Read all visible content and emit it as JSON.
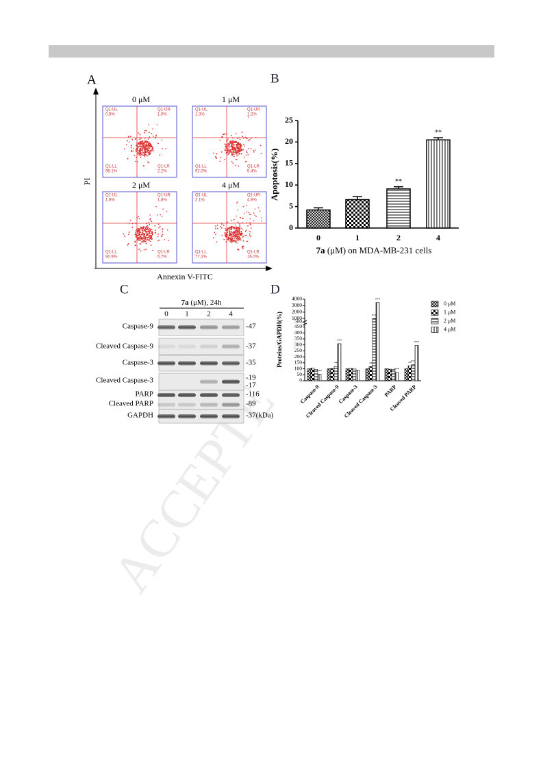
{
  "header_bar": true,
  "panel_labels": [
    "A",
    "B",
    "C",
    "D"
  ],
  "flow": {
    "y_label": "PI",
    "x_label": "Annexin V-FITC",
    "plots": [
      {
        "title": "0 μM",
        "quadrants": [
          "Q1-UL",
          "Q1-UR",
          "Q1-LL",
          "Q1-LR"
        ],
        "percents": [
          "0.8%",
          "1.0%",
          "96.1%",
          "2.2%"
        ]
      },
      {
        "title": "1 μM",
        "quadrants": [
          "Q1-UL",
          "Q1-UR",
          "Q1-LL",
          "Q1-LR"
        ],
        "percents": [
          "1.3%",
          "1.2%",
          "92.0%",
          "5.4%"
        ]
      },
      {
        "title": "2 μM",
        "quadrants": [
          "Q1-UL",
          "Q1-UR",
          "Q1-LL",
          "Q1-LR"
        ],
        "percents": [
          "1.6%",
          "1.8%",
          "90.9%",
          "5.7%"
        ]
      },
      {
        "title": "4 μM",
        "quadrants": [
          "Q1-UL",
          "Q1-UR",
          "Q1-LL",
          "Q1-LR"
        ],
        "percents": [
          "2.1%",
          "4.8%",
          "77.1%",
          "16.0%"
        ]
      }
    ]
  },
  "chart_data": [
    {
      "type": "bar",
      "y_label": "Apoptosis(%)",
      "x_label": {
        "compound": "7a",
        "text": " (μM) on MDA-MB-231 cells"
      },
      "categories": [
        "0",
        "1",
        "2",
        "4"
      ],
      "values": [
        4.2,
        6.6,
        9.1,
        20.5
      ],
      "errors": [
        0.5,
        0.7,
        0.5,
        0.5
      ],
      "significance": [
        null,
        null,
        "**",
        "**"
      ],
      "color": "#000000",
      "ylim": [
        0,
        25
      ],
      "yticks": [
        0,
        5,
        10,
        15,
        20,
        25
      ]
    },
    {
      "type": "grouped-bar",
      "y_label": "Proteins/GAPDH(%)",
      "categories": [
        "Caspase-9",
        "Cleaved Caspase-9",
        "Caspase-3",
        "Cleaved Caspase-3",
        "PARP",
        "Cleaved PARP"
      ],
      "series": [
        {
          "name": "0 μM",
          "color": "#000000",
          "values": [
            100,
            100,
            100,
            100,
            100,
            100
          ],
          "significance": [
            null,
            null,
            null,
            null,
            null,
            null
          ]
        },
        {
          "name": "1 μM",
          "color": "#000000",
          "values": [
            105,
            102,
            103,
            118,
            97,
            125
          ],
          "significance": [
            null,
            null,
            null,
            "**",
            null,
            "**"
          ]
        },
        {
          "name": "2 μM",
          "color": "#000000",
          "values": [
            95,
            120,
            98,
            1000,
            95,
            135
          ],
          "significance": [
            null,
            "**",
            null,
            "***",
            null,
            "***"
          ]
        },
        {
          "name": "4 μM",
          "color": "#000000",
          "values": [
            55,
            310,
            88,
            3500,
            70,
            295
          ],
          "significance": [
            "***",
            "***",
            null,
            "***",
            "***",
            "***"
          ]
        }
      ],
      "ylim": [
        0,
        4000
      ],
      "y_break": [
        470,
        500
      ],
      "yticks": [
        0,
        50,
        100,
        150,
        200,
        250,
        300,
        350,
        400,
        450,
        500,
        1000,
        2000,
        3000,
        4000
      ]
    }
  ],
  "blot": {
    "header": {
      "compound": "7a",
      "text": " (μM), 24h"
    },
    "lanes": [
      "0",
      "1",
      "2",
      "4"
    ],
    "rows": [
      {
        "name": "Caspase-9",
        "mw": "-47"
      },
      {
        "name": "Cleaved Caspase-9",
        "mw": "-37"
      },
      {
        "name": "Caspase-3",
        "mw": "-35"
      },
      {
        "name": "Cleaved Caspase-3",
        "mw": "-19"
      },
      {
        "name": "PARP",
        "mw": "-116"
      },
      {
        "name": "Cleaved PARP",
        "mw": "-89"
      },
      {
        "name": "GAPDH",
        "mw": "-37(kDa)"
      }
    ],
    "extra_mw": "-17"
  },
  "watermark": "ACCEPTE"
}
